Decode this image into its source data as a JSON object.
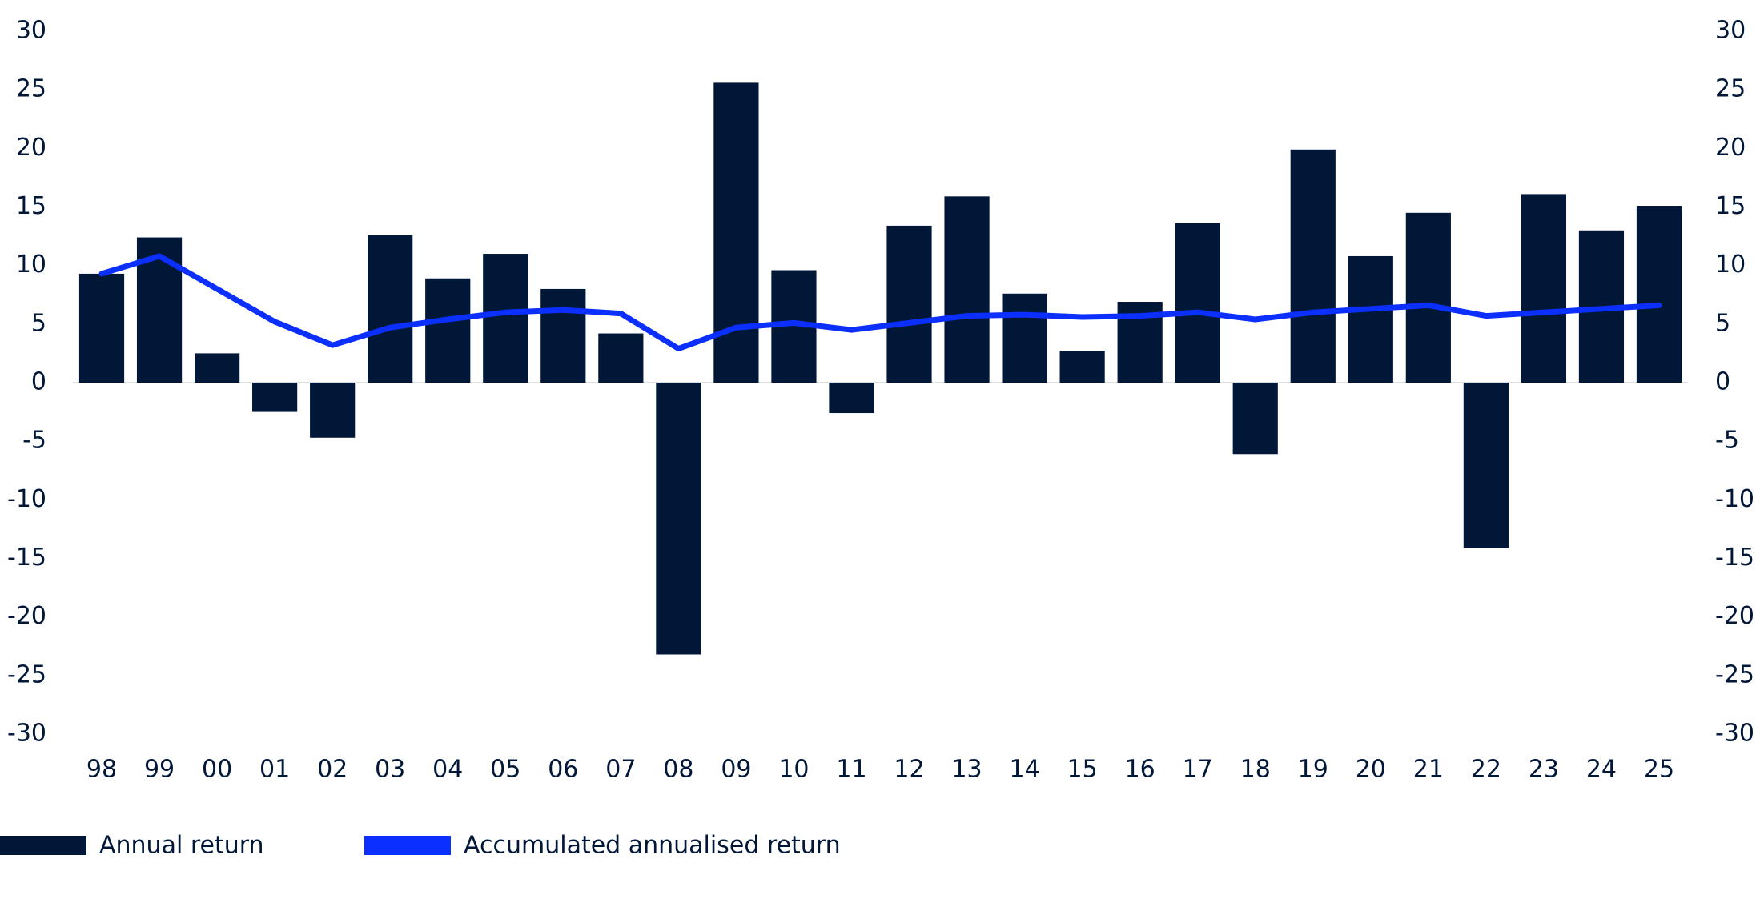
{
  "chart_data": {
    "type": "bar-line",
    "categories": [
      "98",
      "99",
      "00",
      "01",
      "02",
      "03",
      "04",
      "05",
      "06",
      "07",
      "08",
      "09",
      "10",
      "11",
      "12",
      "13",
      "14",
      "15",
      "16",
      "17",
      "18",
      "19",
      "20",
      "21",
      "22",
      "23",
      "24",
      "25"
    ],
    "series": [
      {
        "name": "Annual return",
        "type": "bar",
        "color": "#001738",
        "values": [
          9.3,
          12.4,
          2.5,
          -2.5,
          -4.7,
          12.6,
          8.9,
          11.0,
          8.0,
          4.2,
          -23.2,
          25.6,
          9.6,
          -2.6,
          13.4,
          15.9,
          7.6,
          2.7,
          6.9,
          13.6,
          -6.1,
          19.9,
          10.8,
          14.5,
          -14.1,
          16.1,
          13.0,
          15.1
        ]
      },
      {
        "name": "Accumulated annualised return",
        "type": "line",
        "color": "#0a2fff",
        "values": [
          9.3,
          10.8,
          8.0,
          5.2,
          3.2,
          4.7,
          5.4,
          6.0,
          6.2,
          5.9,
          2.9,
          4.7,
          5.1,
          4.5,
          5.1,
          5.7,
          5.8,
          5.6,
          5.7,
          6.0,
          5.4,
          6.0,
          6.3,
          6.6,
          5.7,
          6.0,
          6.3,
          6.6
        ]
      }
    ],
    "ylim": [
      -30,
      30
    ],
    "yticks": [
      -30,
      -25,
      -20,
      -15,
      -10,
      -5,
      0,
      5,
      10,
      15,
      20,
      25,
      30
    ],
    "y2lim": [
      -30,
      30
    ],
    "y2ticks": [
      -30,
      -25,
      -20,
      -15,
      -10,
      -5,
      0,
      5,
      10,
      15,
      20,
      25,
      30
    ],
    "grid": false
  }
}
